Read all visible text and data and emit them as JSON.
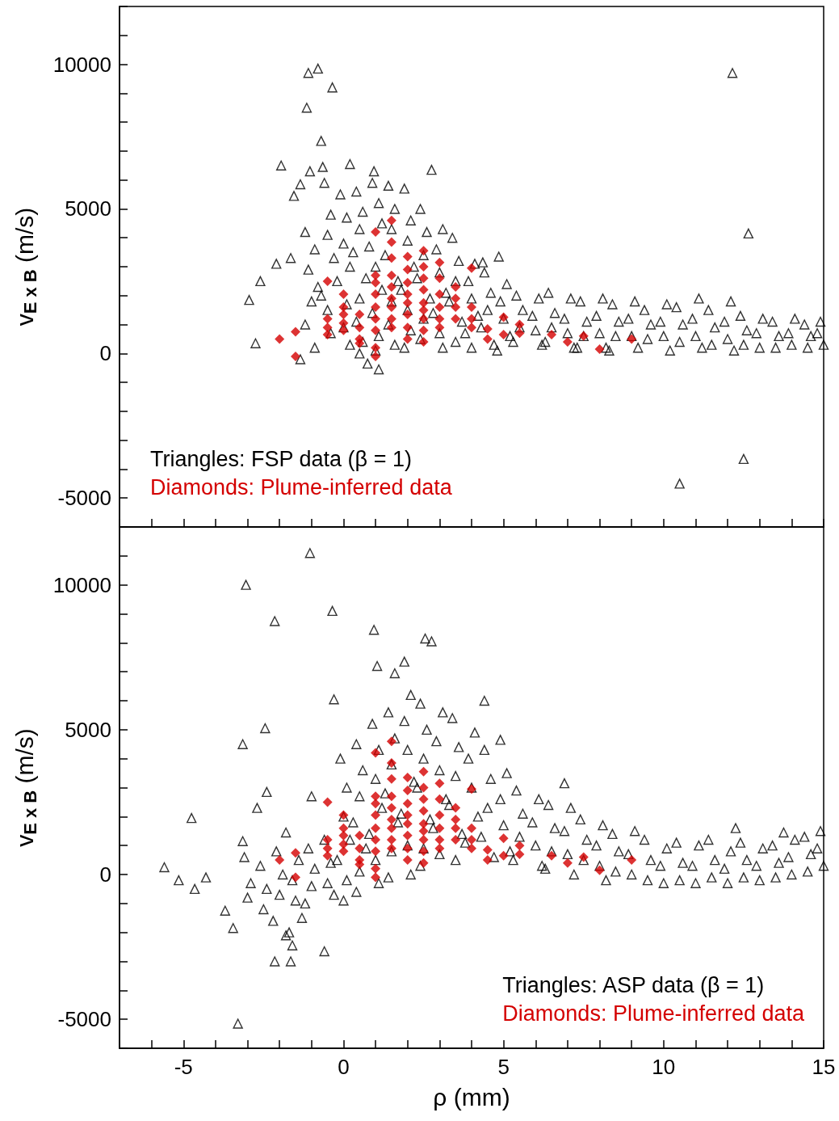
{
  "chart_data": [
    {
      "type": "scatter",
      "ylabel": "v$_{E x B}$ (m/s)",
      "xlim": [
        -7,
        15
      ],
      "ylim": [
        -6000,
        12000
      ],
      "xticks": [
        {
          "value": -7,
          "label": null
        },
        {
          "value": -6,
          "label": null
        },
        -5,
        {
          "value": -4,
          "label": null
        },
        {
          "value": -3,
          "label": null
        },
        {
          "value": -2,
          "label": null
        },
        {
          "value": -1,
          "label": null
        },
        0,
        {
          "value": 1,
          "label": null
        },
        {
          "value": 2,
          "label": null
        },
        {
          "value": 3,
          "label": null
        },
        {
          "value": 4,
          "label": null
        },
        5,
        {
          "value": 6,
          "label": null
        },
        {
          "value": 7,
          "label": null
        },
        {
          "value": 8,
          "label": null
        },
        {
          "value": 9,
          "label": null
        },
        10,
        {
          "value": 11,
          "label": null
        },
        {
          "value": 12,
          "label": null
        },
        {
          "value": 13,
          "label": null
        },
        {
          "value": 14,
          "label": null
        },
        15
      ],
      "yticks": [
        {
          "value": -6000,
          "label": null
        },
        -5000,
        {
          "value": -4000,
          "label": null
        },
        {
          "value": -3000,
          "label": null
        },
        {
          "value": -2000,
          "label": null
        },
        {
          "value": -1000,
          "label": null
        },
        0,
        {
          "value": 1000,
          "label": null
        },
        {
          "value": 2000,
          "label": null
        },
        {
          "value": 3000,
          "label": null
        },
        {
          "value": 4000,
          "label": null
        },
        5000,
        {
          "value": 6000,
          "label": null
        },
        {
          "value": 7000,
          "label": null
        },
        {
          "value": 8000,
          "label": null
        },
        {
          "value": 9000,
          "label": null
        },
        10000,
        {
          "value": 11000,
          "label": null
        },
        {
          "value": 12000,
          "label": null
        }
      ],
      "tick_labels": "y",
      "legend": "bottom left",
      "series": [
        {
          "name": "Triangles: FSP data (β = 1)",
          "color": "#000000",
          "marker": "triangle",
          "x": [
            -1.1,
            -0.8,
            -0.35,
            -1.15,
            -0.7,
            -1.95,
            -1.35,
            -1.55,
            -1.05,
            -0.65,
            0.2,
            0.95,
            2.75,
            12.15,
            12.65,
            12.5,
            10.5,
            -2.75,
            -2.95,
            -2.6,
            -2.1,
            -1.65,
            -1.35,
            0.75,
            1.1,
            4.85,
            4.35,
            -1.2,
            -0.9,
            -1.1,
            -0.8,
            -1,
            -1.2,
            -0.9,
            -0.6,
            -0.4,
            -0.5,
            -0.3,
            -0.7,
            -0.5,
            -0.4,
            -0.1,
            0.1,
            0,
            0.2,
            -0.2,
            0.1,
            0,
            0.2,
            0.4,
            0.6,
            0.5,
            0.3,
            0.7,
            0.5,
            0.4,
            0.6,
            0.5,
            0.9,
            1.1,
            1.2,
            0.8,
            1,
            1.2,
            0.9,
            1.1,
            1,
            1.4,
            1.6,
            1.5,
            1.3,
            1.7,
            1.5,
            1.4,
            1.6,
            1.9,
            2.1,
            2,
            2.2,
            1.8,
            2,
            2.1,
            1.9,
            2.4,
            2.6,
            2.5,
            2.3,
            2.7,
            2.5,
            2.4,
            3.1,
            2.9,
            3,
            3.2,
            2.8,
            3,
            3.1,
            3.4,
            3.6,
            3.5,
            3.3,
            3.7,
            3.5,
            4.1,
            3.9,
            4,
            4.2,
            3.8,
            4,
            4.4,
            4.6,
            4.5,
            4.3,
            4.7,
            5.1,
            4.9,
            5,
            5.2,
            4.8,
            5.4,
            5.6,
            5.5,
            5.3,
            6.1,
            5.9,
            6,
            6.2,
            6.4,
            6.6,
            6.5,
            6.3,
            7.1,
            6.9,
            7,
            7.2,
            7.4,
            7.6,
            7.5,
            7.3,
            8.1,
            7.9,
            8,
            8.2,
            8.4,
            8.6,
            8.5,
            8.3,
            9.1,
            8.9,
            9,
            9.2,
            9.4,
            9.6,
            9.5,
            10.1,
            9.9,
            10,
            10.2,
            10.4,
            10.6,
            10.5,
            11.1,
            10.9,
            11,
            11.2,
            11.4,
            11.6,
            11.5,
            12.1,
            11.9,
            12,
            12.2,
            12.4,
            12.6,
            12.5,
            13.1,
            12.9,
            13,
            13.4,
            13.6,
            13.5,
            14.1,
            13.9,
            14,
            14.4,
            14.6,
            14.5,
            14.9,
            14.8,
            15
          ],
          "values": [
            9700,
            9850,
            9200,
            8500,
            7350,
            6500,
            5850,
            5450,
            6300,
            6450,
            6550,
            6300,
            6350,
            9700,
            4150,
            -3650,
            -4500,
            350,
            1850,
            2500,
            3100,
            3300,
            -200,
            -350,
            -550,
            3350,
            3150,
            4200,
            3600,
            2900,
            2300,
            1800,
            1000,
            200,
            5900,
            4800,
            4100,
            3300,
            2000,
            1500,
            700,
            5500,
            4700,
            3800,
            3000,
            2500,
            1700,
            900,
            300,
            5600,
            4900,
            4300,
            3500,
            2600,
            1900,
            1100,
            400,
            0,
            5900,
            5200,
            4500,
            3700,
            3000,
            2200,
            1400,
            600,
            100,
            5800,
            5000,
            4300,
            3400,
            2500,
            1800,
            1000,
            300,
            5700,
            4600,
            3900,
            3000,
            2200,
            1500,
            800,
            200,
            5000,
            4200,
            3400,
            2600,
            1900,
            1200,
            500,
            4300,
            3600,
            2800,
            2100,
            1400,
            700,
            200,
            4000,
            3200,
            2500,
            1800,
            1100,
            400,
            3100,
            2500,
            1900,
            1300,
            700,
            200,
            2800,
            2100,
            1500,
            900,
            300,
            2400,
            1800,
            1200,
            600,
            100,
            2000,
            1500,
            900,
            400,
            1900,
            1300,
            800,
            300,
            2100,
            1400,
            900,
            400,
            1900,
            1200,
            700,
            200,
            1800,
            1100,
            600,
            200,
            1900,
            1300,
            700,
            200,
            1700,
            1100,
            600,
            100,
            1800,
            1200,
            600,
            200,
            1500,
            1000,
            500,
            1700,
            1100,
            600,
            100,
            1600,
            1000,
            400,
            1900,
            1200,
            600,
            200,
            1500,
            900,
            300,
            1800,
            1100,
            500,
            100,
            1300,
            800,
            300,
            1200,
            700,
            200,
            1100,
            600,
            200,
            1200,
            700,
            300,
            1000,
            600,
            200,
            1100,
            700,
            300
          ]
        },
        {
          "name": "Diamonds: Plume-inferred data",
          "color": "#d40000",
          "marker": "diamond",
          "x": [
            -2,
            -1.5,
            -1.5,
            -0.5,
            -0.5,
            -0.5,
            -0.5,
            0,
            0,
            0,
            0,
            0,
            0.5,
            0.5,
            0.5,
            0.5,
            1,
            1,
            1,
            1,
            1,
            1,
            1,
            1,
            1,
            1.5,
            1.5,
            1.5,
            1.5,
            1.5,
            1.5,
            1.5,
            1.5,
            1.5,
            2,
            2,
            2,
            2,
            2,
            2,
            2,
            2,
            2.5,
            2.5,
            2.5,
            2.5,
            2.5,
            2.5,
            2.5,
            2.5,
            2.5,
            3,
            3,
            3,
            3,
            3,
            3,
            3.5,
            3.5,
            3.5,
            3.5,
            4,
            4,
            4,
            4,
            4.5,
            4.5,
            5,
            5,
            5.5,
            5.5,
            6.5,
            7,
            7.5,
            8,
            9
          ],
          "values": [
            500,
            750,
            -100,
            2500,
            1200,
            900,
            650,
            2050,
            1600,
            1350,
            1050,
            800,
            1350,
            900,
            500,
            350,
            4200,
            2700,
            2450,
            2050,
            1600,
            1200,
            800,
            200,
            -100,
            4600,
            3850,
            3300,
            2700,
            2300,
            1900,
            1600,
            1200,
            900,
            3350,
            2900,
            2450,
            2050,
            1750,
            1350,
            900,
            500,
            3550,
            3000,
            2600,
            2200,
            1750,
            1500,
            1200,
            800,
            400,
            3150,
            2600,
            2050,
            1600,
            1200,
            900,
            2300,
            1900,
            1600,
            1200,
            2950,
            1600,
            1200,
            900,
            850,
            500,
            1250,
            650,
            1000,
            700,
            650,
            400,
            600,
            150,
            500
          ]
        }
      ]
    },
    {
      "type": "scatter",
      "xlabel": "ρ (mm)",
      "ylabel": "v$_{E x B}$ (m/s)",
      "xlim": [
        -7,
        15
      ],
      "ylim": [
        -6000,
        12000
      ],
      "xticks": [
        {
          "value": -7,
          "label": null
        },
        {
          "value": -6,
          "label": null
        },
        -5,
        {
          "value": -4,
          "label": null
        },
        {
          "value": -3,
          "label": null
        },
        {
          "value": -2,
          "label": null
        },
        {
          "value": -1,
          "label": null
        },
        0,
        {
          "value": 1,
          "label": null
        },
        {
          "value": 2,
          "label": null
        },
        {
          "value": 3,
          "label": null
        },
        {
          "value": 4,
          "label": null
        },
        5,
        {
          "value": 6,
          "label": null
        },
        {
          "value": 7,
          "label": null
        },
        {
          "value": 8,
          "label": null
        },
        {
          "value": 9,
          "label": null
        },
        10,
        {
          "value": 11,
          "label": null
        },
        {
          "value": 12,
          "label": null
        },
        {
          "value": 13,
          "label": null
        },
        {
          "value": 14,
          "label": null
        },
        15
      ],
      "yticks": [
        {
          "value": -6000,
          "label": null
        },
        -5000,
        {
          "value": -4000,
          "label": null
        },
        {
          "value": -3000,
          "label": null
        },
        {
          "value": -2000,
          "label": null
        },
        {
          "value": -1000,
          "label": null
        },
        0,
        {
          "value": 1000,
          "label": null
        },
        {
          "value": 2000,
          "label": null
        },
        {
          "value": 3000,
          "label": null
        },
        {
          "value": 4000,
          "label": null
        },
        5000,
        {
          "value": 6000,
          "label": null
        },
        {
          "value": 7000,
          "label": null
        },
        {
          "value": 8000,
          "label": null
        },
        {
          "value": 9000,
          "label": null
        },
        10000,
        {
          "value": 11000,
          "label": null
        },
        {
          "value": 12000,
          "label": null
        }
      ],
      "legend": "bottom right",
      "series": [
        {
          "name": "Triangles: ASP data (β = 1)",
          "color": "#000000",
          "marker": "triangle",
          "x": [
            -1.05,
            -3.05,
            -2.15,
            -0.35,
            0.95,
            2.55,
            2.75,
            1.9,
            1.05,
            1.6,
            -0.3,
            -2.45,
            -3.15,
            -5.6,
            -5.15,
            -4.75,
            -4.65,
            -4.3,
            -3.3,
            -2.15,
            -1.65,
            -1.6,
            -0.6,
            -3.7,
            -3.45,
            -3.15,
            -2.7,
            -2.4,
            -1.8,
            -1,
            4.4,
            4.9,
            6.9,
            13.75,
            12.25,
            -3.1,
            -2.9,
            -3,
            -2.6,
            -2.4,
            -2.5,
            -2.1,
            -1.9,
            -2,
            -2.2,
            -1.8,
            -1.4,
            -1.6,
            -1.5,
            -1.3,
            -1.7,
            -1.1,
            -0.9,
            -1,
            -1.2,
            -0.6,
            -0.4,
            -0.5,
            -0.3,
            -0.1,
            0.1,
            0,
            0.2,
            -0.2,
            0.1,
            0,
            0.4,
            0.6,
            0.5,
            0.3,
            0.7,
            0.5,
            0.4,
            0.9,
            1.1,
            1,
            1.2,
            0.8,
            1,
            1.1,
            1.4,
            1.6,
            1.5,
            1.3,
            1.7,
            1.5,
            1.4,
            2.1,
            1.9,
            2,
            2.2,
            1.8,
            2,
            2.1,
            2.4,
            2.6,
            2.5,
            2.3,
            2.7,
            2.5,
            2.4,
            3.1,
            2.9,
            3,
            3.2,
            2.8,
            3,
            3.4,
            3.6,
            3.5,
            3.3,
            3.7,
            3.5,
            4.1,
            3.9,
            4,
            4.2,
            3.8,
            4.4,
            4.6,
            4.5,
            4.3,
            4.7,
            5.1,
            4.9,
            5,
            5.2,
            5.4,
            5.6,
            5.5,
            5.3,
            6.1,
            5.9,
            6,
            6.2,
            6.4,
            6.6,
            6.5,
            6.3,
            7.1,
            6.9,
            7,
            7.2,
            7.4,
            7.6,
            7.5,
            8.1,
            7.9,
            8,
            8.2,
            8.4,
            8.6,
            8.5,
            9.1,
            8.9,
            9,
            9.4,
            9.6,
            9.5,
            10.1,
            9.9,
            10,
            10.4,
            10.6,
            10.5,
            11.1,
            10.9,
            11,
            11.4,
            11.6,
            11.5,
            12.1,
            11.9,
            12,
            12.4,
            12.6,
            12.5,
            13.1,
            12.9,
            13,
            13.4,
            13.6,
            13.5,
            14.1,
            13.9,
            14,
            14.4,
            14.6,
            14.5,
            14.9,
            14.8,
            15
          ],
          "values": [
            11100,
            10000,
            8750,
            9100,
            8450,
            8150,
            8050,
            7350,
            7200,
            6950,
            6050,
            5050,
            4500,
            250,
            -200,
            1950,
            -500,
            -100,
            -5150,
            -3000,
            -3000,
            -2450,
            -2650,
            -1250,
            -1850,
            1150,
            2300,
            2850,
            1450,
            2700,
            6000,
            4650,
            3150,
            1450,
            1600,
            600,
            -300,
            -800,
            300,
            -500,
            -1200,
            800,
            0,
            -700,
            -1600,
            -2100,
            500,
            -200,
            -900,
            -1500,
            -2000,
            900,
            200,
            -400,
            -1000,
            1200,
            400,
            -300,
            -700,
            4000,
            3000,
            2000,
            1200,
            500,
            -200,
            -900,
            4500,
            3600,
            2700,
            1800,
            900,
            100,
            -600,
            5200,
            4300,
            3300,
            2300,
            1400,
            500,
            -300,
            5600,
            4700,
            3800,
            2800,
            1800,
            800,
            -100,
            6200,
            5300,
            4300,
            3200,
            2100,
            1000,
            0,
            5900,
            5000,
            4000,
            3000,
            1900,
            900,
            300,
            5600,
            4600,
            3600,
            2600,
            1600,
            700,
            5400,
            4400,
            3400,
            2400,
            1400,
            500,
            4900,
            4000,
            3000,
            2000,
            1100,
            4300,
            3300,
            2300,
            1300,
            600,
            3500,
            2600,
            1700,
            800,
            2900,
            2100,
            1300,
            500,
            2600,
            1800,
            1000,
            300,
            2400,
            1600,
            800,
            200,
            2300,
            1500,
            700,
            0,
            1900,
            1200,
            500,
            1700,
            1000,
            300,
            -200,
            1400,
            800,
            100,
            1500,
            700,
            0,
            1200,
            500,
            -200,
            900,
            300,
            -300,
            1100,
            400,
            -200,
            1000,
            300,
            -300,
            1200,
            500,
            -100,
            800,
            200,
            -300,
            1100,
            500,
            -100,
            900,
            300,
            -200,
            1000,
            400,
            -100,
            1200,
            600,
            0,
            1300,
            700,
            100,
            1500,
            900,
            300
          ]
        },
        {
          "name": "Diamonds: Plume-inferred data",
          "color": "#d40000",
          "marker": "diamond",
          "x": [
            -2,
            -1.5,
            -1.5,
            -0.5,
            -0.5,
            -0.5,
            -0.5,
            0,
            0,
            0,
            0,
            0,
            0.5,
            0.5,
            0.5,
            0.5,
            1,
            1,
            1,
            1,
            1,
            1,
            1,
            1,
            1,
            1.5,
            1.5,
            1.5,
            1.5,
            1.5,
            1.5,
            1.5,
            1.5,
            1.5,
            2,
            2,
            2,
            2,
            2,
            2,
            2,
            2,
            2.5,
            2.5,
            2.5,
            2.5,
            2.5,
            2.5,
            2.5,
            2.5,
            2.5,
            3,
            3,
            3,
            3,
            3,
            3,
            3.5,
            3.5,
            3.5,
            3.5,
            4,
            4,
            4,
            4,
            4.5,
            4.5,
            5,
            5,
            5.5,
            5.5,
            6.5,
            7,
            7.5,
            8,
            9
          ],
          "values": [
            500,
            750,
            -100,
            2500,
            1200,
            900,
            650,
            2050,
            1600,
            1350,
            1050,
            800,
            1350,
            900,
            500,
            350,
            4200,
            2700,
            2450,
            2050,
            1600,
            1200,
            800,
            200,
            -100,
            4600,
            3850,
            3300,
            2700,
            2300,
            1900,
            1600,
            1200,
            900,
            3350,
            2900,
            2450,
            2050,
            1750,
            1350,
            900,
            500,
            3550,
            3000,
            2600,
            2200,
            1750,
            1500,
            1200,
            800,
            400,
            3150,
            2600,
            2050,
            1600,
            1200,
            900,
            2300,
            1900,
            1600,
            1200,
            2950,
            1600,
            1200,
            900,
            850,
            500,
            1250,
            650,
            1000,
            700,
            650,
            400,
            600,
            150,
            500
          ]
        }
      ]
    }
  ]
}
